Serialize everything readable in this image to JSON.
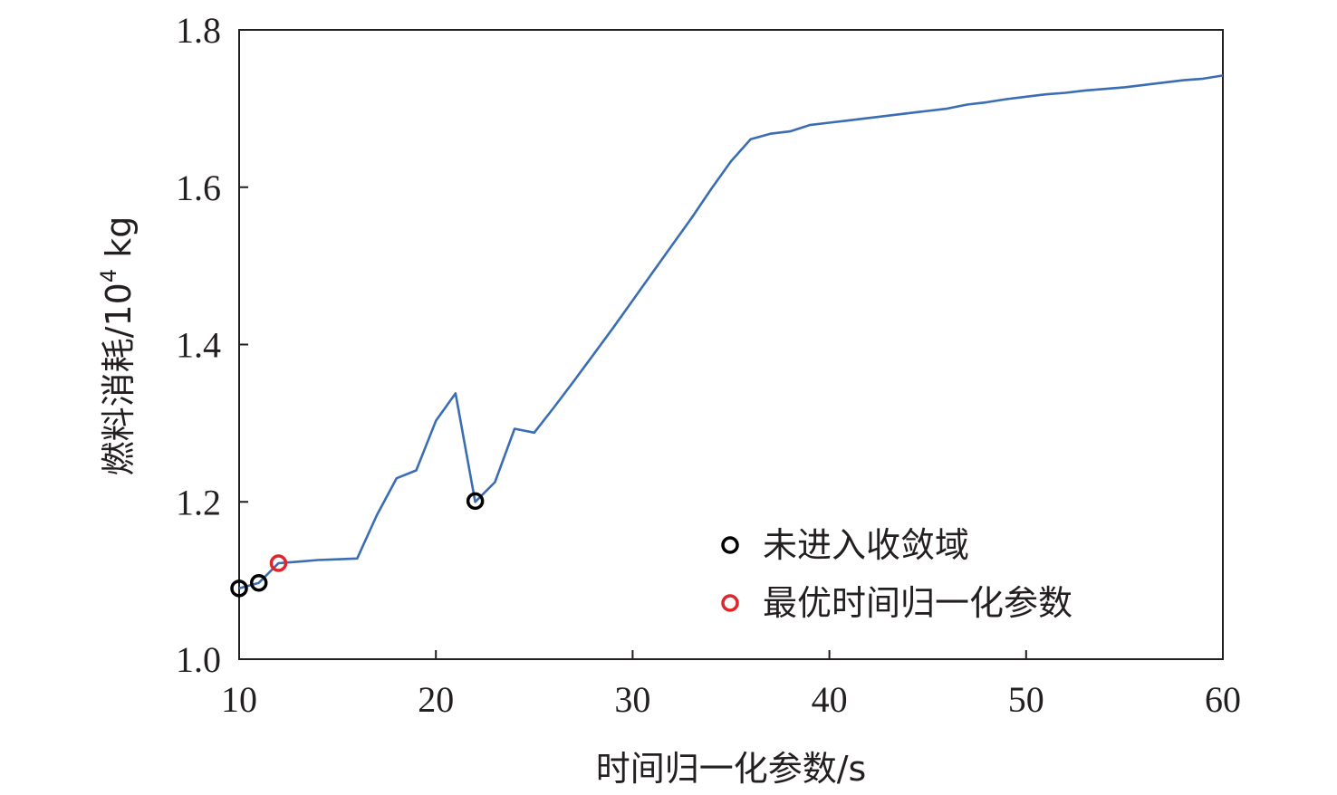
{
  "chart_data": {
    "type": "line",
    "xlabel": "时间归一化参数/s",
    "ylabel_main": "燃料消耗/10",
    "ylabel_sup": "4",
    "ylabel_unit": " kg",
    "xlim": [
      10,
      60
    ],
    "ylim": [
      1.0,
      1.8
    ],
    "xticks": [
      10,
      20,
      30,
      40,
      50,
      60
    ],
    "yticks": [
      "1.0",
      "1.2",
      "1.4",
      "1.6",
      "1.8"
    ],
    "grid": false,
    "legend_position": "bottom-right",
    "line_color": "#3b6db3",
    "series": [
      {
        "x": [
          10,
          11,
          12,
          13,
          14,
          15,
          16,
          17,
          18,
          19,
          20,
          21,
          22,
          23,
          24,
          25,
          26,
          27,
          28,
          29,
          30,
          31,
          32,
          33,
          34,
          35,
          36,
          37,
          38,
          39,
          40,
          41,
          42,
          43,
          44,
          45,
          46,
          47,
          48,
          49,
          50,
          51,
          52,
          53,
          54,
          55,
          56,
          57,
          58,
          59,
          60
        ],
        "y": [
          1.09,
          1.097,
          1.122,
          1.124,
          1.126,
          1.127,
          1.128,
          1.183,
          1.23,
          1.24,
          1.303,
          1.338,
          1.2,
          1.225,
          1.293,
          1.288,
          1.32,
          1.353,
          1.387,
          1.421,
          1.456,
          1.491,
          1.526,
          1.561,
          1.598,
          1.633,
          1.661,
          1.668,
          1.671,
          1.679,
          1.682,
          1.685,
          1.688,
          1.691,
          1.694,
          1.697,
          1.7,
          1.705,
          1.708,
          1.712,
          1.715,
          1.718,
          1.72,
          1.723,
          1.725,
          1.727,
          1.73,
          1.733,
          1.736,
          1.738,
          1.742
        ]
      }
    ],
    "markers": [
      {
        "group": "not_converged",
        "x": 10,
        "y": 1.09
      },
      {
        "group": "not_converged",
        "x": 11,
        "y": 1.097
      },
      {
        "group": "not_converged",
        "x": 22,
        "y": 1.201
      },
      {
        "group": "optimal",
        "x": 12,
        "y": 1.122
      }
    ],
    "legend": [
      {
        "key": "not_converged",
        "label": "未进入收敛域",
        "color": "#000000"
      },
      {
        "key": "optimal",
        "label": "最优时间归一化参数",
        "color": "#e0262b"
      }
    ]
  }
}
